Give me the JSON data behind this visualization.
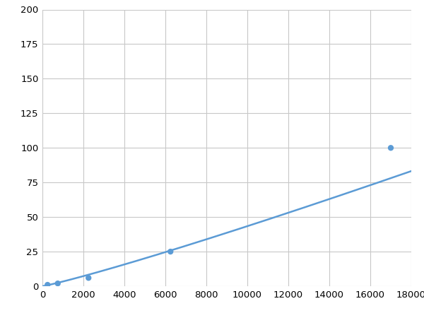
{
  "x_data": [
    250,
    750,
    2250,
    6250,
    17000
  ],
  "y_data": [
    1,
    2,
    6,
    25,
    100
  ],
  "line_color": "#5b9bd5",
  "marker_color": "#5b9bd5",
  "marker_size": 6,
  "line_width": 1.8,
  "xlim": [
    0,
    18000
  ],
  "ylim": [
    0,
    200
  ],
  "xticks": [
    0,
    2000,
    4000,
    6000,
    8000,
    10000,
    12000,
    14000,
    16000,
    18000
  ],
  "yticks": [
    0,
    25,
    50,
    75,
    100,
    125,
    150,
    175,
    200
  ],
  "grid_color": "#c8c8c8",
  "background_color": "#ffffff",
  "tick_fontsize": 9.5
}
